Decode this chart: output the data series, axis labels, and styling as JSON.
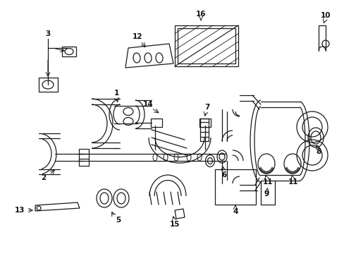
{
  "background_color": "#ffffff",
  "line_color": "#1a1a1a",
  "text_color": "#111111",
  "figsize": [
    4.89,
    3.6
  ],
  "dpi": 100,
  "lw": 0.9,
  "label_fontsize": 7.5,
  "xlim": [
    0,
    489
  ],
  "ylim": [
    0,
    360
  ]
}
